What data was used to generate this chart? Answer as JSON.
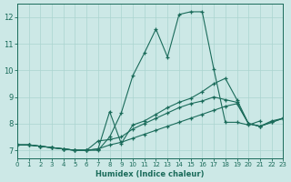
{
  "xlabel": "Humidex (Indice chaleur)",
  "background_color": "#cce8e6",
  "grid_color": "#aad4d0",
  "line_color": "#1a6b5a",
  "xlim": [
    0,
    23
  ],
  "ylim": [
    6.7,
    12.5
  ],
  "xticks": [
    0,
    1,
    2,
    3,
    4,
    5,
    6,
    7,
    8,
    9,
    10,
    11,
    12,
    13,
    14,
    15,
    16,
    17,
    18,
    19,
    20,
    21,
    22,
    23
  ],
  "yticks": [
    7,
    8,
    9,
    10,
    11,
    12
  ],
  "curves": [
    {
      "x": [
        0,
        1,
        2,
        3,
        4,
        5,
        6,
        7,
        8,
        9,
        10,
        11,
        12,
        13,
        14,
        15,
        16,
        17,
        18,
        19,
        20,
        21
      ],
      "y": [
        7.2,
        7.2,
        7.15,
        7.1,
        7.05,
        7.0,
        7.0,
        7.0,
        7.5,
        8.4,
        9.8,
        10.65,
        11.55,
        10.5,
        12.1,
        12.2,
        12.2,
        10.05,
        8.05,
        8.05,
        7.95,
        8.1
      ]
    },
    {
      "x": [
        0,
        1,
        2,
        3,
        4,
        5,
        6,
        7,
        8,
        9,
        10,
        11,
        12,
        13,
        14,
        15,
        16,
        17,
        18,
        19,
        20,
        21,
        22,
        23
      ],
      "y": [
        7.2,
        7.2,
        7.15,
        7.1,
        7.05,
        7.0,
        7.0,
        7.35,
        7.4,
        7.5,
        7.8,
        8.0,
        8.2,
        8.4,
        8.6,
        8.75,
        8.85,
        9.0,
        8.9,
        8.8,
        8.0,
        7.9,
        8.1,
        8.2
      ]
    },
    {
      "x": [
        0,
        1,
        2,
        3,
        4,
        5,
        6,
        7,
        8,
        9,
        10,
        11,
        12,
        13,
        14,
        15,
        16,
        17,
        18,
        19,
        20,
        21,
        22,
        23
      ],
      "y": [
        7.2,
        7.2,
        7.15,
        7.1,
        7.05,
        7.0,
        7.0,
        7.05,
        7.2,
        7.3,
        7.45,
        7.6,
        7.75,
        7.9,
        8.05,
        8.2,
        8.35,
        8.5,
        8.65,
        8.75,
        8.0,
        7.9,
        8.05,
        8.2
      ]
    },
    {
      "x": [
        0,
        1,
        2,
        3,
        4,
        5,
        6,
        7,
        8,
        9,
        10,
        11,
        12,
        13,
        14,
        15,
        16,
        17,
        18,
        19,
        20,
        21,
        22,
        23
      ],
      "y": [
        7.2,
        7.2,
        7.15,
        7.1,
        7.05,
        7.0,
        7.0,
        7.05,
        8.45,
        7.25,
        7.95,
        8.1,
        8.35,
        8.6,
        8.8,
        8.95,
        9.2,
        9.5,
        9.7,
        8.9,
        8.0,
        7.9,
        8.05,
        8.2
      ]
    }
  ]
}
